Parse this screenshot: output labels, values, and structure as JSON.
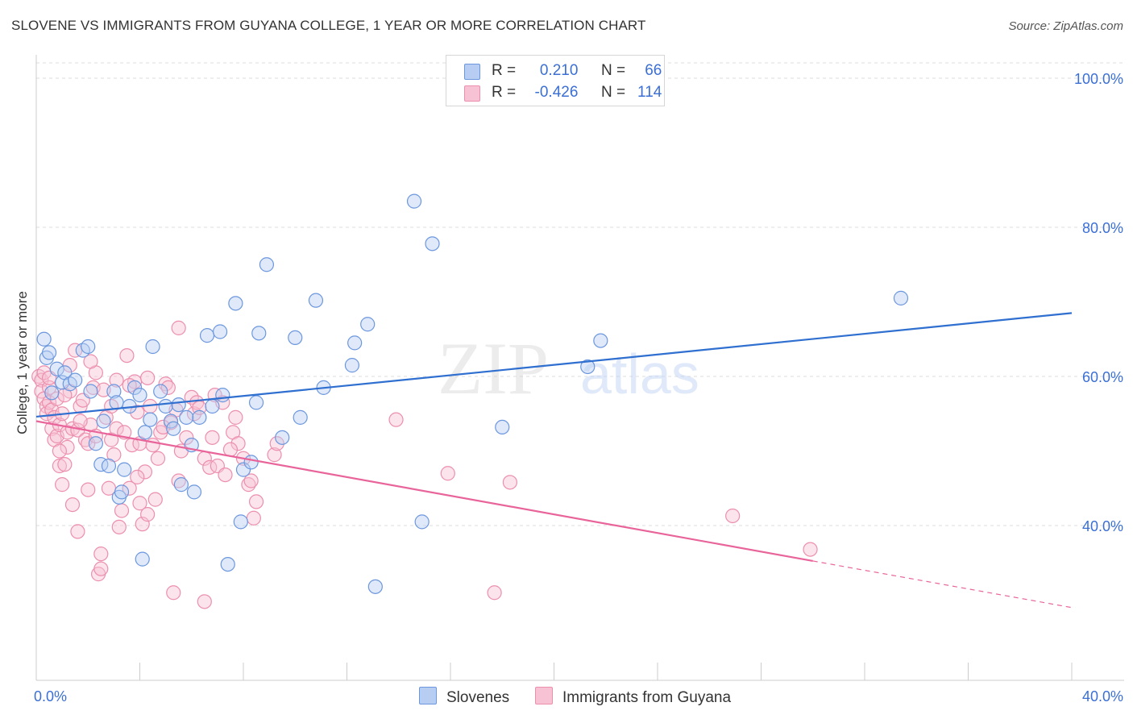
{
  "title": "SLOVENE VS IMMIGRANTS FROM GUYANA COLLEGE, 1 YEAR OR MORE CORRELATION CHART",
  "source": "Source: ZipAtlas.com",
  "watermark": {
    "zip": "ZIP",
    "atlas": "atlas"
  },
  "legend": {
    "rows": [
      {
        "r_label": "R =",
        "r_value": "0.210",
        "n_label": "N =",
        "n_value": "66"
      },
      {
        "r_label": "R =",
        "r_value": "-0.426",
        "n_label": "N =",
        "n_value": "114"
      }
    ]
  },
  "bottom_legend": {
    "series_a": "Slovenes",
    "series_b": "Immigrants from Guyana"
  },
  "colors": {
    "blue_fill": "#b7cef2",
    "blue_stroke": "#6c97de",
    "blue_line": "#2f6fd0",
    "pink_fill": "#f7c3d4",
    "pink_stroke": "#ec8fad",
    "pink_line": "#e8649a",
    "axis_text": "#3b6fd4",
    "grid": "#dcdcdc"
  },
  "chart_data": {
    "type": "scatter",
    "title": "SLOVENE VS IMMIGRANTS FROM GUYANA COLLEGE, 1 YEAR OR MORE CORRELATION CHART",
    "xlabel": "",
    "ylabel": "College, 1 year or more",
    "xlim": [
      0,
      40
    ],
    "ylim": [
      20,
      105
    ],
    "x_tick_labels": [
      {
        "value": 0,
        "label": "0.0%"
      },
      {
        "value": 40,
        "label": "40.0%"
      }
    ],
    "y_tick_labels": [
      {
        "value": 100,
        "label": "100.0%"
      },
      {
        "value": 80,
        "label": "80.0%"
      },
      {
        "value": 60,
        "label": "60.0%"
      },
      {
        "value": 40,
        "label": "40.0%"
      }
    ],
    "x_minor_ticks": [
      4,
      8,
      12,
      16,
      20,
      24,
      28,
      32,
      36,
      40
    ],
    "series": [
      {
        "name": "Slovenes",
        "r": 0.21,
        "n": 66,
        "trend": {
          "x": [
            0,
            40
          ],
          "y": [
            54.6,
            68.5
          ],
          "dashed_from": null
        },
        "points": [
          [
            0.3,
            65.0
          ],
          [
            0.4,
            62.5
          ],
          [
            0.5,
            63.2
          ],
          [
            0.6,
            57.8
          ],
          [
            0.8,
            61.0
          ],
          [
            1.0,
            59.2
          ],
          [
            1.1,
            60.5
          ],
          [
            1.3,
            59.0
          ],
          [
            1.5,
            59.5
          ],
          [
            1.8,
            63.5
          ],
          [
            2.0,
            64.0
          ],
          [
            2.1,
            58.0
          ],
          [
            2.3,
            51.0
          ],
          [
            2.5,
            48.2
          ],
          [
            2.6,
            54.0
          ],
          [
            2.8,
            48.0
          ],
          [
            3.0,
            58.0
          ],
          [
            3.1,
            56.5
          ],
          [
            3.2,
            43.8
          ],
          [
            3.3,
            44.5
          ],
          [
            3.4,
            47.5
          ],
          [
            3.6,
            56.0
          ],
          [
            3.8,
            58.5
          ],
          [
            4.0,
            57.5
          ],
          [
            4.1,
            35.5
          ],
          [
            4.2,
            52.5
          ],
          [
            4.4,
            54.2
          ],
          [
            4.5,
            64.0
          ],
          [
            4.8,
            58.0
          ],
          [
            5.0,
            56.0
          ],
          [
            5.2,
            54.0
          ],
          [
            5.3,
            53.0
          ],
          [
            5.5,
            56.2
          ],
          [
            5.6,
            45.5
          ],
          [
            5.8,
            54.5
          ],
          [
            6.0,
            50.8
          ],
          [
            6.1,
            44.5
          ],
          [
            6.3,
            54.5
          ],
          [
            6.6,
            65.5
          ],
          [
            6.8,
            56.0
          ],
          [
            7.1,
            66.0
          ],
          [
            7.2,
            57.5
          ],
          [
            7.4,
            34.8
          ],
          [
            7.7,
            69.8
          ],
          [
            7.9,
            40.5
          ],
          [
            8.0,
            47.5
          ],
          [
            8.3,
            48.5
          ],
          [
            8.5,
            56.5
          ],
          [
            8.6,
            65.8
          ],
          [
            8.9,
            75.0
          ],
          [
            9.5,
            51.8
          ],
          [
            10.0,
            65.2
          ],
          [
            10.2,
            54.5
          ],
          [
            10.8,
            70.2
          ],
          [
            11.1,
            58.5
          ],
          [
            12.2,
            61.5
          ],
          [
            12.3,
            64.5
          ],
          [
            12.8,
            67.0
          ],
          [
            13.1,
            31.8
          ],
          [
            14.6,
            83.5
          ],
          [
            14.9,
            40.5
          ],
          [
            15.3,
            77.8
          ],
          [
            18.0,
            53.2
          ],
          [
            21.3,
            61.3
          ],
          [
            21.8,
            64.8
          ],
          [
            33.4,
            70.5
          ]
        ]
      },
      {
        "name": "Immigrants from Guyana",
        "r": -0.426,
        "n": 114,
        "trend": {
          "x": [
            0,
            40
          ],
          "y": [
            54.0,
            29.0
          ],
          "dashed_from": 30.0
        },
        "points": [
          [
            0.1,
            60.0
          ],
          [
            0.2,
            59.5
          ],
          [
            0.2,
            58.0
          ],
          [
            0.3,
            57.0
          ],
          [
            0.3,
            60.5
          ],
          [
            0.4,
            56.0
          ],
          [
            0.4,
            55.0
          ],
          [
            0.5,
            58.5
          ],
          [
            0.5,
            56.5
          ],
          [
            0.6,
            55.5
          ],
          [
            0.6,
            53.0
          ],
          [
            0.7,
            51.5
          ],
          [
            0.7,
            54.5
          ],
          [
            0.8,
            52.0
          ],
          [
            0.8,
            57.0
          ],
          [
            0.9,
            53.5
          ],
          [
            0.9,
            48.0
          ],
          [
            1.0,
            55.0
          ],
          [
            1.0,
            45.5
          ],
          [
            1.1,
            48.2
          ],
          [
            1.2,
            50.5
          ],
          [
            1.2,
            52.5
          ],
          [
            1.3,
            58.0
          ],
          [
            1.3,
            61.5
          ],
          [
            1.4,
            42.8
          ],
          [
            1.4,
            53.0
          ],
          [
            1.5,
            63.5
          ],
          [
            1.6,
            39.2
          ],
          [
            1.6,
            52.8
          ],
          [
            1.7,
            56.0
          ],
          [
            1.8,
            56.8
          ],
          [
            1.9,
            51.5
          ],
          [
            2.0,
            51.0
          ],
          [
            2.0,
            44.8
          ],
          [
            2.1,
            53.5
          ],
          [
            2.2,
            58.5
          ],
          [
            2.3,
            52.0
          ],
          [
            2.3,
            60.5
          ],
          [
            2.4,
            33.5
          ],
          [
            2.5,
            36.2
          ],
          [
            2.5,
            34.2
          ],
          [
            2.6,
            58.2
          ],
          [
            2.7,
            54.5
          ],
          [
            2.8,
            45.0
          ],
          [
            2.9,
            51.5
          ],
          [
            3.0,
            49.5
          ],
          [
            3.1,
            59.5
          ],
          [
            3.1,
            53.0
          ],
          [
            3.2,
            39.8
          ],
          [
            3.3,
            42.0
          ],
          [
            3.4,
            52.5
          ],
          [
            3.5,
            62.8
          ],
          [
            3.6,
            45.0
          ],
          [
            3.7,
            50.8
          ],
          [
            3.8,
            59.3
          ],
          [
            3.9,
            55.2
          ],
          [
            4.0,
            51.0
          ],
          [
            4.0,
            43.0
          ],
          [
            4.1,
            40.2
          ],
          [
            4.2,
            47.2
          ],
          [
            4.3,
            41.5
          ],
          [
            4.3,
            59.8
          ],
          [
            4.4,
            56.0
          ],
          [
            4.5,
            50.8
          ],
          [
            4.6,
            43.5
          ],
          [
            4.7,
            49.0
          ],
          [
            4.8,
            52.5
          ],
          [
            5.0,
            59.0
          ],
          [
            5.1,
            58.5
          ],
          [
            5.2,
            53.8
          ],
          [
            5.3,
            31.0
          ],
          [
            5.4,
            55.5
          ],
          [
            5.5,
            66.5
          ],
          [
            5.5,
            46.0
          ],
          [
            5.6,
            50.0
          ],
          [
            5.8,
            51.8
          ],
          [
            6.0,
            57.2
          ],
          [
            6.1,
            55.0
          ],
          [
            6.2,
            56.5
          ],
          [
            6.5,
            29.8
          ],
          [
            6.5,
            49.0
          ],
          [
            6.7,
            47.8
          ],
          [
            6.8,
            51.8
          ],
          [
            6.9,
            57.5
          ],
          [
            7.0,
            48.0
          ],
          [
            7.2,
            56.5
          ],
          [
            7.3,
            46.8
          ],
          [
            7.6,
            52.5
          ],
          [
            7.7,
            54.5
          ],
          [
            7.8,
            51.0
          ],
          [
            8.0,
            49.0
          ],
          [
            8.2,
            45.5
          ],
          [
            8.3,
            46.0
          ],
          [
            8.4,
            41.0
          ],
          [
            8.5,
            43.2
          ],
          [
            9.2,
            49.5
          ],
          [
            9.3,
            51.0
          ],
          [
            13.9,
            54.2
          ],
          [
            15.9,
            47.0
          ],
          [
            17.7,
            31.0
          ],
          [
            18.3,
            45.8
          ],
          [
            26.9,
            41.3
          ],
          [
            29.9,
            36.8
          ],
          [
            0.5,
            59.8
          ],
          [
            1.1,
            57.5
          ],
          [
            2.1,
            62.0
          ],
          [
            3.6,
            58.8
          ],
          [
            4.9,
            53.2
          ],
          [
            6.3,
            55.8
          ],
          [
            7.5,
            50.2
          ],
          [
            0.9,
            50.0
          ],
          [
            1.7,
            54.0
          ],
          [
            2.9,
            56.0
          ],
          [
            3.9,
            46.5
          ]
        ]
      }
    ]
  }
}
